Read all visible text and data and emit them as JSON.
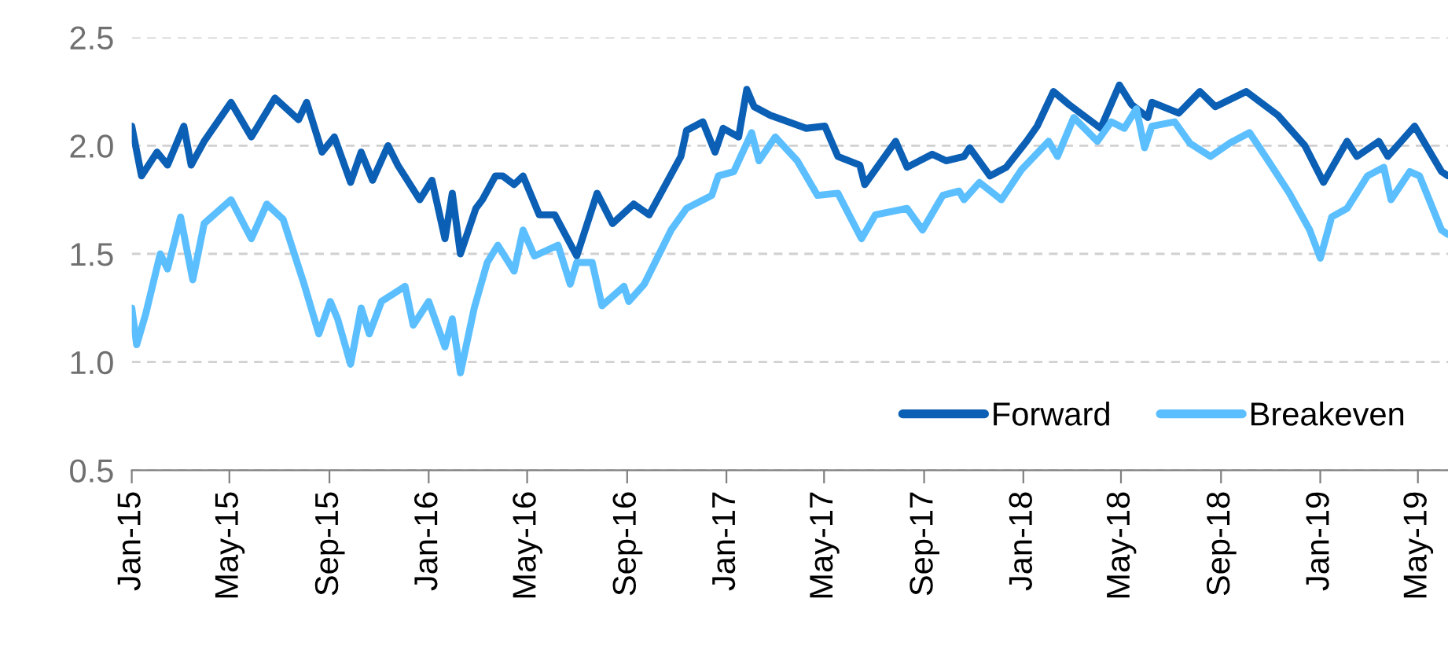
{
  "chart_data": {
    "type": "line",
    "xlim": [
      "2015-01-01",
      "2019-06-07"
    ],
    "xticks": [
      {
        "value": "2015-01-01",
        "label": "Jan-15"
      },
      {
        "value": "2015-05-01",
        "label": "May-15"
      },
      {
        "value": "2015-09-01",
        "label": "Sep-15"
      },
      {
        "value": "2016-01-01",
        "label": "Jan-16"
      },
      {
        "value": "2016-05-01",
        "label": "May-16"
      },
      {
        "value": "2016-09-01",
        "label": "Sep-16"
      },
      {
        "value": "2017-01-01",
        "label": "Jan-17"
      },
      {
        "value": "2017-05-01",
        "label": "May-17"
      },
      {
        "value": "2017-09-01",
        "label": "Sep-17"
      },
      {
        "value": "2018-01-01",
        "label": "Jan-18"
      },
      {
        "value": "2018-05-01",
        "label": "May-18"
      },
      {
        "value": "2018-09-01",
        "label": "Sep-18"
      },
      {
        "value": "2019-01-01",
        "label": "Jan-19"
      },
      {
        "value": "2019-05-01",
        "label": "May-19"
      }
    ],
    "ylim": [
      0.5,
      2.5
    ],
    "yticks": [
      {
        "value": 0.5,
        "label": "0.5"
      },
      {
        "value": 1.0,
        "label": "1.0"
      },
      {
        "value": 1.5,
        "label": "1.5"
      },
      {
        "value": 2.0,
        "label": "2.0"
      },
      {
        "value": 2.5,
        "label": "2.5"
      }
    ],
    "grid": "y",
    "legend": "bottom right",
    "line_style": "solid",
    "marker": "none",
    "series": [
      {
        "name": "Forward",
        "color": "#0b5fb4",
        "x": [
          "2015-01-01",
          "2015-01-13",
          "2015-02-01",
          "2015-02-14",
          "2015-03-06",
          "2015-03-15",
          "2015-03-31",
          "2015-05-03",
          "2015-05-28",
          "2015-06-26",
          "2015-07-25",
          "2015-08-04",
          "2015-08-23",
          "2015-09-07",
          "2015-09-27",
          "2015-10-10",
          "2015-10-24",
          "2015-11-12",
          "2015-11-24",
          "2015-12-21",
          "2016-01-05",
          "2016-01-21",
          "2016-01-30",
          "2016-02-09",
          "2016-02-28",
          "2016-03-07",
          "2016-03-23",
          "2016-04-01",
          "2016-04-15",
          "2016-04-26",
          "2016-05-16",
          "2016-06-04",
          "2016-07-01",
          "2016-07-26",
          "2016-08-14",
          "2016-09-09",
          "2016-09-28",
          "2016-11-06",
          "2016-11-13",
          "2016-12-03",
          "2016-12-18",
          "2016-12-28",
          "2017-01-16",
          "2017-01-26",
          "2017-02-04",
          "2017-02-24",
          "2017-04-09",
          "2017-05-02",
          "2017-05-18",
          "2017-06-14",
          "2017-06-20",
          "2017-07-28",
          "2017-08-11",
          "2017-09-11",
          "2017-09-28",
          "2017-10-20",
          "2017-10-27",
          "2017-11-21",
          "2017-12-11",
          "2018-01-05",
          "2018-01-18",
          "2018-02-07",
          "2018-02-26",
          "2018-04-06",
          "2018-04-29",
          "2018-05-14",
          "2018-06-03",
          "2018-06-08",
          "2018-07-11",
          "2018-08-06",
          "2018-08-25",
          "2018-10-02",
          "2018-11-10",
          "2018-12-13",
          "2019-01-05",
          "2019-02-03",
          "2019-02-15",
          "2019-03-14",
          "2019-03-25",
          "2019-04-27",
          "2019-05-30",
          "2019-06-07"
        ],
        "values": [
          2.09,
          1.86,
          1.97,
          1.91,
          2.09,
          1.91,
          2.02,
          2.2,
          2.04,
          2.22,
          2.12,
          2.2,
          1.97,
          2.04,
          1.83,
          1.97,
          1.84,
          2.0,
          1.91,
          1.75,
          1.84,
          1.57,
          1.78,
          1.5,
          1.71,
          1.75,
          1.86,
          1.86,
          1.82,
          1.86,
          1.68,
          1.68,
          1.49,
          1.78,
          1.64,
          1.73,
          1.68,
          1.95,
          2.07,
          2.11,
          1.97,
          2.08,
          2.04,
          2.26,
          2.18,
          2.14,
          2.08,
          2.09,
          1.95,
          1.91,
          1.82,
          2.02,
          1.9,
          1.96,
          1.93,
          1.95,
          1.99,
          1.86,
          1.9,
          2.02,
          2.09,
          2.25,
          2.19,
          2.08,
          2.28,
          2.19,
          2.13,
          2.2,
          2.15,
          2.25,
          2.18,
          2.25,
          2.14,
          2.0,
          1.83,
          2.02,
          1.95,
          2.02,
          1.95,
          2.09,
          1.88,
          1.86
        ]
      },
      {
        "name": "Breakeven",
        "color": "#5bbfff",
        "x": [
          "2015-01-01",
          "2015-01-07",
          "2015-01-18",
          "2015-02-05",
          "2015-02-14",
          "2015-03-02",
          "2015-03-17",
          "2015-03-31",
          "2015-05-03",
          "2015-05-28",
          "2015-06-16",
          "2015-07-06",
          "2015-07-31",
          "2015-08-19",
          "2015-09-02",
          "2015-09-11",
          "2015-09-27",
          "2015-10-10",
          "2015-10-20",
          "2015-11-04",
          "2015-12-03",
          "2015-12-13",
          "2016-01-01",
          "2016-01-21",
          "2016-01-30",
          "2016-02-09",
          "2016-02-26",
          "2016-03-13",
          "2016-03-26",
          "2016-04-15",
          "2016-04-26",
          "2016-05-10",
          "2016-06-08",
          "2016-06-23",
          "2016-07-01",
          "2016-07-20",
          "2016-08-01",
          "2016-08-28",
          "2016-09-03",
          "2016-09-22",
          "2016-10-25",
          "2016-11-13",
          "2016-12-14",
          "2016-12-22",
          "2017-01-10",
          "2017-02-01",
          "2017-02-10",
          "2017-03-02",
          "2017-03-29",
          "2017-04-23",
          "2017-05-18",
          "2017-06-16",
          "2017-07-03",
          "2017-08-11",
          "2017-08-30",
          "2017-09-24",
          "2017-10-14",
          "2017-10-20",
          "2017-11-08",
          "2017-12-05",
          "2017-12-30",
          "2018-02-01",
          "2018-02-12",
          "2018-03-04",
          "2018-04-02",
          "2018-04-19",
          "2018-05-05",
          "2018-05-20",
          "2018-05-30",
          "2018-06-08",
          "2018-07-06",
          "2018-07-25",
          "2018-08-19",
          "2018-09-11",
          "2018-10-06",
          "2018-10-29",
          "2018-11-24",
          "2018-12-19",
          "2019-01-01",
          "2019-01-15",
          "2019-02-03",
          "2019-02-28",
          "2019-03-20",
          "2019-03-29",
          "2019-04-21",
          "2019-05-03",
          "2019-05-30",
          "2019-06-07"
        ],
        "values": [
          1.25,
          1.08,
          1.22,
          1.5,
          1.43,
          1.67,
          1.38,
          1.64,
          1.75,
          1.57,
          1.73,
          1.66,
          1.37,
          1.13,
          1.28,
          1.2,
          0.99,
          1.25,
          1.13,
          1.28,
          1.35,
          1.17,
          1.28,
          1.07,
          1.2,
          0.95,
          1.25,
          1.46,
          1.54,
          1.42,
          1.61,
          1.49,
          1.54,
          1.36,
          1.46,
          1.46,
          1.26,
          1.35,
          1.28,
          1.36,
          1.61,
          1.71,
          1.77,
          1.86,
          1.88,
          2.06,
          1.93,
          2.04,
          1.93,
          1.77,
          1.78,
          1.57,
          1.68,
          1.71,
          1.61,
          1.77,
          1.79,
          1.75,
          1.83,
          1.75,
          1.89,
          2.02,
          1.95,
          2.13,
          2.02,
          2.11,
          2.08,
          2.17,
          1.99,
          2.09,
          2.11,
          2.01,
          1.95,
          2.01,
          2.06,
          1.93,
          1.78,
          1.61,
          1.48,
          1.67,
          1.71,
          1.86,
          1.9,
          1.75,
          1.88,
          1.86,
          1.61,
          1.59
        ]
      }
    ]
  }
}
